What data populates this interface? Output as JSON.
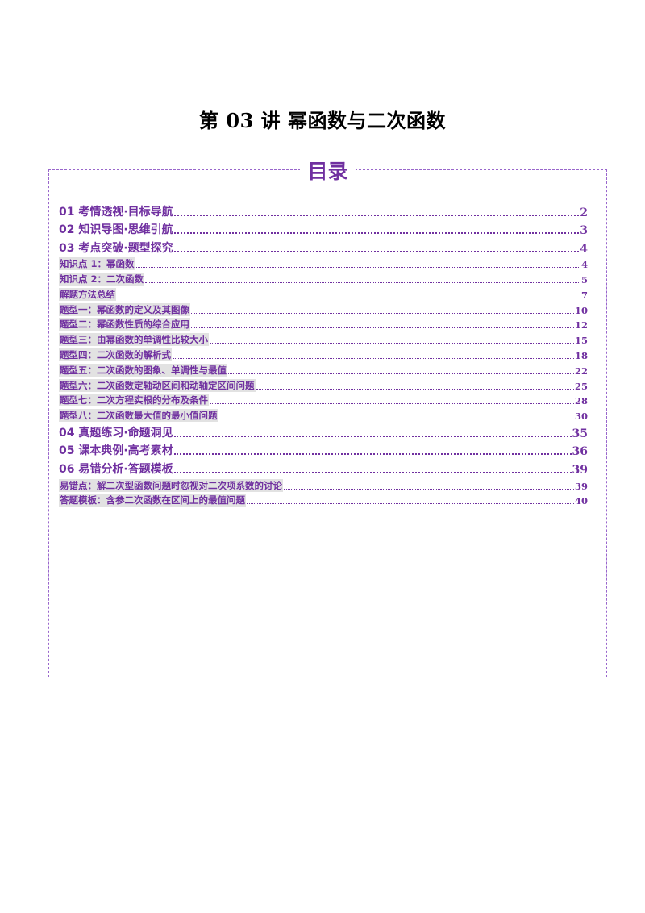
{
  "document": {
    "title": "第 03 讲 幂函数与二次函数"
  },
  "toc": {
    "heading": "目录",
    "entries": [
      {
        "label": "01 考情透视·目标导航",
        "page": "2",
        "level": 1
      },
      {
        "label": "02 知识导图·思维引航",
        "page": "3",
        "level": 1
      },
      {
        "label": "03 考点突破·题型探究",
        "page": "4",
        "level": 1
      },
      {
        "label": "知识点 1：幂函数",
        "page": "4",
        "level": 2
      },
      {
        "label": "知识点 2：二次函数",
        "page": "5",
        "level": 2
      },
      {
        "label": "解题方法总结",
        "page": "7",
        "level": 2
      },
      {
        "label": "题型一：幂函数的定义及其图像",
        "page": "10",
        "level": 2
      },
      {
        "label": "题型二：幂函数性质的综合应用",
        "page": "12",
        "level": 2
      },
      {
        "label": "题型三：由幂函数的单调性比较大小",
        "page": "15",
        "level": 2
      },
      {
        "label": "题型四：二次函数的解析式",
        "page": "18",
        "level": 2
      },
      {
        "label": "题型五：二次函数的图象、单调性与最值",
        "page": "22",
        "level": 2
      },
      {
        "label": "题型六：二次函数定轴动区间和动轴定区间问题",
        "page": "25",
        "level": 2
      },
      {
        "label": "题型七：二次方程实根的分布及条件",
        "page": "28",
        "level": 2
      },
      {
        "label": "题型八：二次函数最大值的最小值问题",
        "page": "30",
        "level": 2
      },
      {
        "label": "04 真题练习·命题洞见",
        "page": "35",
        "level": 1
      },
      {
        "label": "05 课本典例·高考素材",
        "page": "36",
        "level": 1
      },
      {
        "label": "06 易错分析·答题模板",
        "page": "39",
        "level": 1
      },
      {
        "label": "易错点：解二次型函数问题时忽视对二次项系数的讨论",
        "page": "39",
        "level": 2
      },
      {
        "label": "答题模板：含参二次函数在区间上的最值问题",
        "page": "40",
        "level": 2
      }
    ]
  },
  "colors": {
    "accent": "#7030a0",
    "border": "#9966cc",
    "highlight": "#e2e2e2",
    "title": "#000000"
  }
}
